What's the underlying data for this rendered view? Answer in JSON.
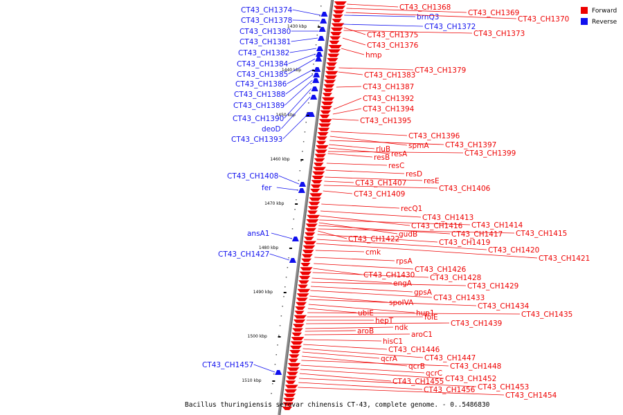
{
  "colors": {
    "forward": "#ee0000",
    "reverse": "#1010ee",
    "axis": "#888888",
    "line": "#ee0000"
  },
  "legend": [
    {
      "label": "Forward",
      "color": "#ee0000"
    },
    {
      "label": "Reverse",
      "color": "#1010ee"
    }
  ],
  "caption": "Bacillus thuringiensis serovar chinensis CT-43, complete genome. - 0..5486830",
  "ticks": [
    "1430 kbp",
    "1440 kbp",
    "1450 kbp",
    "1460 kbp",
    "1470 kbp",
    "1480 kbp",
    "1490 kbp",
    "1500 kbp",
    "1510 kbp"
  ],
  "reverse_labels": [
    "CT43_CH1374",
    "CT43_CH1378",
    "CT43_CH1380",
    "CT43_CH1381",
    "CT43_CH1382",
    "CT43_CH1384",
    "CT43_CH1385",
    "CT43_CH1386",
    "CT43_CH1388",
    "CT43_CH1389",
    "CT43_CH1390",
    "deoD",
    "CT43_CH1393",
    "brnQ3",
    "CT43_CH1372",
    "CT43_CH1408",
    "fer",
    "ansA1",
    "CT43_CH1427",
    "CT43_CH1457"
  ],
  "forward_labels": [
    "CT43_CH1368",
    "CT43_CH1369",
    "CT43_CH1370",
    "CT43_CH1375",
    "CT43_CH1373",
    "CT43_CH1376",
    "hmp",
    "CT43_CH1379",
    "CT43_CH1383",
    "CT43_CH1387",
    "CT43_CH1392",
    "CT43_CH1394",
    "CT43_CH1395",
    "CT43_CH1396",
    "spmA",
    "CT43_CH1397",
    "rluB",
    "resA",
    "CT43_CH1399",
    "resB",
    "resC",
    "resD",
    "resE",
    "CT43_CH1407",
    "CT43_CH1406",
    "CT43_CH1409",
    "recQ1",
    "CT43_CH1413",
    "CT43_CH1416",
    "CT43_CH1414",
    "gudB",
    "CT43_CH1417",
    "CT43_CH1415",
    "CT43_CH1422",
    "CT43_CH1419",
    "CT43_CH1420",
    "CT43_CH1421",
    "cmk",
    "rpsA",
    "CT43_CH1426",
    "CT43_CH1430",
    "CT43_CH1428",
    "engA",
    "CT43_CH1429",
    "gpsA",
    "CT43_CH1433",
    "spoIVA",
    "CT43_CH1434",
    "hup1",
    "ubiE",
    "CT43_CH1435",
    "folE",
    "hepT",
    "CT43_CH1439",
    "ndk",
    "aroB",
    "aroC1",
    "hisC1",
    "CT43_CH1446",
    "CT43_CH1447",
    "qcrA",
    "qcrB",
    "CT43_CH1448",
    "qcrC",
    "CT43_CH1452",
    "CT43_CH1455",
    "CT43_CH1453",
    "CT43_CH1456",
    "CT43_CH1454"
  ]
}
